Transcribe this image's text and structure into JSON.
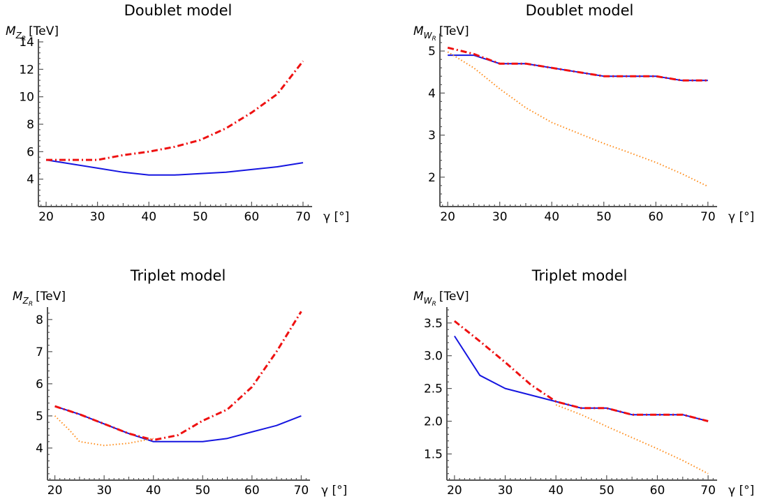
{
  "chart_data": [
    {
      "type": "line",
      "title": "Doublet model",
      "ylabel": {
        "symbol": "M",
        "sub": "Z",
        "subsub": "R",
        "unit": "[TeV]"
      },
      "xlabel": "γ [°]",
      "xlim": [
        18.5,
        71.5
      ],
      "ylim": [
        2.0,
        14.0
      ],
      "xticks": [
        20,
        30,
        40,
        50,
        60,
        70
      ],
      "yticks": [
        4,
        6,
        8,
        10,
        12,
        14
      ],
      "grid": false,
      "series": [
        {
          "style": "solid",
          "color": "#1515e0",
          "x": [
            20,
            25,
            30,
            35,
            40,
            45,
            50,
            55,
            60,
            65,
            70
          ],
          "y": [
            5.4,
            5.1,
            4.8,
            4.5,
            4.3,
            4.3,
            4.4,
            4.5,
            4.7,
            4.9,
            5.2
          ]
        },
        {
          "style": "dashdot",
          "color": "#ee1111",
          "x": [
            20,
            25,
            30,
            35,
            40,
            45,
            50,
            55,
            60,
            65,
            70
          ],
          "y": [
            5.4,
            5.4,
            5.4,
            5.75,
            6.0,
            6.35,
            6.85,
            7.7,
            8.85,
            10.2,
            12.6
          ]
        }
      ]
    },
    {
      "type": "line",
      "title": "Doublet model",
      "ylabel": {
        "symbol": "M",
        "sub": "W",
        "subsub": "R",
        "unit": "[TeV]"
      },
      "xlabel": "γ [°]",
      "xlim": [
        18.5,
        71.5
      ],
      "ylim": [
        1.3,
        5.35
      ],
      "xticks": [
        20,
        30,
        40,
        50,
        60,
        70
      ],
      "yticks": [
        2,
        3,
        4,
        5
      ],
      "grid": false,
      "series": [
        {
          "style": "solid",
          "color": "#1515e0",
          "x": [
            20,
            25,
            30,
            35,
            40,
            45,
            50,
            55,
            60,
            65,
            70
          ],
          "y": [
            4.9,
            4.9,
            4.7,
            4.7,
            4.6,
            4.5,
            4.4,
            4.4,
            4.4,
            4.3,
            4.3
          ]
        },
        {
          "style": "dashdot",
          "color": "#ee1111",
          "x": [
            20,
            25,
            30,
            35,
            40,
            45,
            50,
            55,
            60,
            65,
            70
          ],
          "y": [
            5.08,
            4.93,
            4.7,
            4.7,
            4.6,
            4.5,
            4.4,
            4.4,
            4.4,
            4.3,
            4.3
          ]
        },
        {
          "style": "dotted",
          "color": "#ff8c1a",
          "x": [
            20,
            25,
            30,
            35,
            40,
            45,
            50,
            55,
            60,
            65,
            70
          ],
          "y": [
            4.98,
            4.6,
            4.1,
            3.65,
            3.3,
            3.05,
            2.8,
            2.58,
            2.35,
            2.08,
            1.78
          ]
        }
      ]
    },
    {
      "type": "line",
      "title": "Triplet model",
      "ylabel": {
        "symbol": "M",
        "sub": "Z",
        "subsub": "R",
        "unit": "[TeV]"
      },
      "xlabel": "γ [°]",
      "xlim": [
        18.5,
        71.5
      ],
      "ylim": [
        3.0,
        8.3
      ],
      "xticks": [
        20,
        30,
        40,
        50,
        60,
        70
      ],
      "yticks": [
        4,
        5,
        6,
        7,
        8
      ],
      "grid": false,
      "series": [
        {
          "style": "solid",
          "color": "#1515e0",
          "x": [
            20,
            25,
            30,
            35,
            40,
            45,
            50,
            55,
            60,
            65,
            70
          ],
          "y": [
            5.3,
            5.05,
            4.75,
            4.45,
            4.2,
            4.2,
            4.2,
            4.3,
            4.5,
            4.7,
            5.0
          ]
        },
        {
          "style": "dashdot",
          "color": "#ee1111",
          "x": [
            20,
            25,
            30,
            35,
            40,
            45,
            50,
            55,
            60,
            65,
            70
          ],
          "y": [
            5.3,
            5.05,
            4.75,
            4.45,
            4.25,
            4.4,
            4.85,
            5.2,
            5.9,
            7.0,
            8.25
          ]
        },
        {
          "style": "dotted",
          "color": "#ff8c1a",
          "x": [
            20,
            23,
            25,
            30,
            35,
            40
          ],
          "y": [
            5.0,
            4.55,
            4.2,
            4.08,
            4.15,
            4.3
          ]
        }
      ]
    },
    {
      "type": "line",
      "title": "Triplet model",
      "ylabel": {
        "symbol": "M",
        "sub": "W",
        "subsub": "R",
        "unit": "[TeV]"
      },
      "xlabel": "γ [°]",
      "xlim": [
        18.5,
        71.5
      ],
      "ylim": [
        1.1,
        3.7
      ],
      "xticks": [
        20,
        30,
        40,
        50,
        60,
        70
      ],
      "yticks": [
        1.5,
        2.0,
        2.5,
        3.0,
        3.5
      ],
      "ytick_labels": [
        "1.5",
        "2.0",
        "2.5",
        "3.0",
        "3.5"
      ],
      "grid": false,
      "series": [
        {
          "style": "solid",
          "color": "#1515e0",
          "x": [
            20,
            25,
            30,
            35,
            40,
            45,
            50,
            55,
            60,
            65,
            70
          ],
          "y": [
            3.3,
            2.7,
            2.5,
            2.4,
            2.3,
            2.2,
            2.2,
            2.1,
            2.1,
            2.1,
            2.0
          ]
        },
        {
          "style": "dashdot",
          "color": "#ee1111",
          "x": [
            20,
            25,
            30,
            35,
            40,
            45,
            50,
            55,
            60,
            65,
            70
          ],
          "y": [
            3.53,
            3.22,
            2.9,
            2.56,
            2.3,
            2.2,
            2.2,
            2.1,
            2.1,
            2.1,
            2.0
          ]
        },
        {
          "style": "dotted",
          "color": "#ff8c1a",
          "x": [
            40,
            45,
            50,
            55,
            60,
            65,
            70
          ],
          "y": [
            2.25,
            2.1,
            1.92,
            1.75,
            1.58,
            1.4,
            1.2
          ]
        }
      ]
    }
  ]
}
